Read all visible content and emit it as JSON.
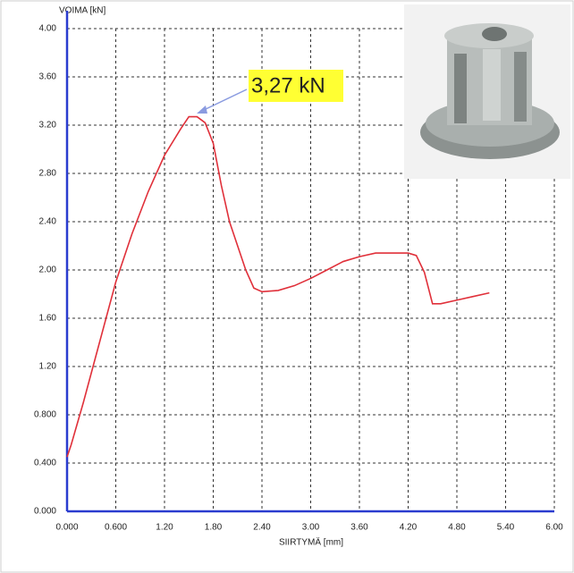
{
  "chart_data": {
    "type": "line",
    "x_label": "SIIRTYMÄ [mm]",
    "y_label": "VOIMA [kN]",
    "annotation": "3,27 kN",
    "x": [
      0,
      0.05,
      0.2,
      0.4,
      0.6,
      0.8,
      1.0,
      1.2,
      1.4,
      1.5,
      1.6,
      1.7,
      1.8,
      1.9,
      2.0,
      2.1,
      2.2,
      2.3,
      2.4,
      2.6,
      2.8,
      3.0,
      3.2,
      3.4,
      3.6,
      3.8,
      4.0,
      4.2,
      4.3,
      4.4,
      4.5,
      4.6,
      4.8,
      5.0,
      5.2
    ],
    "series": [
      {
        "color": "#e0303a",
        "values": [
          0.45,
          0.55,
          0.9,
          1.4,
          1.9,
          2.3,
          2.65,
          2.95,
          3.17,
          3.27,
          3.27,
          3.22,
          3.05,
          2.7,
          2.4,
          2.2,
          2.0,
          1.85,
          1.82,
          1.83,
          1.87,
          1.93,
          2.0,
          2.07,
          2.11,
          2.14,
          2.14,
          2.14,
          2.12,
          1.98,
          1.72,
          1.72,
          1.75,
          1.78,
          1.81
        ]
      }
    ],
    "xlim": [
      0,
      6
    ],
    "ylim": [
      0,
      4
    ],
    "xticks": [
      {
        "value": 0,
        "label": "0.000"
      },
      {
        "value": 0.6,
        "label": "0.600"
      },
      {
        "value": 1.2,
        "label": "1.20"
      },
      {
        "value": 1.8,
        "label": "1.80"
      },
      {
        "value": 2.4,
        "label": "2.40"
      },
      {
        "value": 3,
        "label": "3.00"
      },
      {
        "value": 3.6,
        "label": "3.60"
      },
      {
        "value": 4.2,
        "label": "4.20"
      },
      {
        "value": 4.8,
        "label": "4.80"
      },
      {
        "value": 5.4,
        "label": "5.40"
      },
      {
        "value": 6,
        "label": "6.00"
      }
    ],
    "yticks": [
      {
        "value": 0,
        "label": "0.000"
      },
      {
        "value": 0.4,
        "label": "0.400"
      },
      {
        "value": 0.8,
        "label": "0.800"
      },
      {
        "value": 1.2,
        "label": "1.20"
      },
      {
        "value": 1.6,
        "label": "1.60"
      },
      {
        "value": 2,
        "label": "2.00"
      },
      {
        "value": 2.4,
        "label": "2.40"
      },
      {
        "value": 2.8,
        "label": "2.80"
      },
      {
        "value": 3.2,
        "label": "3.20"
      },
      {
        "value": 3.6,
        "label": "3.60"
      },
      {
        "value": 4,
        "label": "4.00"
      }
    ],
    "grid": true,
    "axis_color": "#2a3ccf"
  }
}
